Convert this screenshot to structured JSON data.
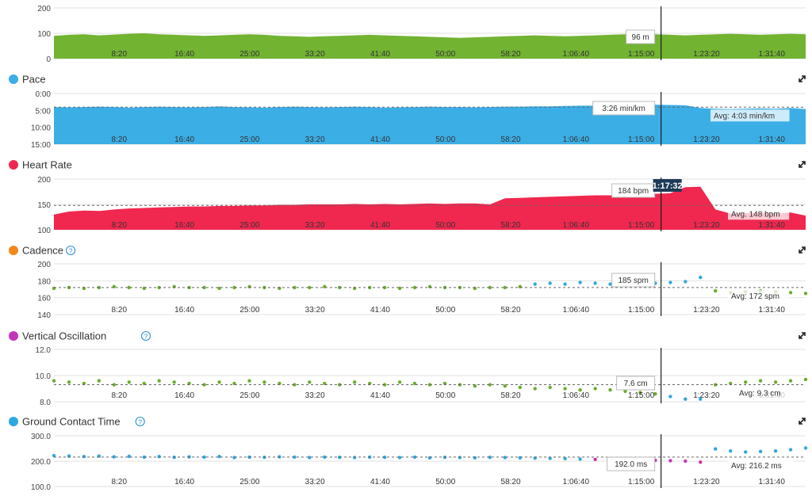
{
  "x_ticks": [
    "8:20",
    "16:40",
    "25:00",
    "33:20",
    "41:40",
    "50:00",
    "58:20",
    "1:06:40",
    "1:15:00",
    "1:23:20",
    "1:31:40"
  ],
  "x_tick_seconds": [
    500,
    1000,
    1500,
    2000,
    2500,
    3000,
    3500,
    4000,
    4500,
    5000,
    5500
  ],
  "x_range_seconds": [
    0,
    5760
  ],
  "cursor": {
    "time_label": "1:17:32",
    "time_seconds": 4652
  },
  "colors": {
    "elevation": "#72b332",
    "pace": "#3caee6",
    "heart_rate": "#f0284f",
    "cadence_green": "#6aad2b",
    "cadence_blue": "#2ea7df",
    "cadence_orange": "#f08a1c",
    "cadence_purple": "#c433b8",
    "cursor": "#1a1a1a",
    "tooltip_dark": "#1d3b57"
  },
  "expand_icon": "expand-icon",
  "chart_data": [
    {
      "id": "elevation",
      "type": "area",
      "title": "",
      "y_ticks": [
        "200",
        "100",
        "0"
      ],
      "ylim": [
        0,
        200
      ],
      "series": [
        {
          "values": [
            90,
            94,
            96,
            92,
            95,
            98,
            100,
            96,
            94,
            92,
            90,
            92,
            94,
            96,
            94,
            90,
            88,
            86,
            88,
            90,
            92,
            94,
            92,
            90,
            88,
            86,
            84,
            82,
            84,
            86,
            88,
            90,
            92,
            90,
            88,
            90,
            92,
            94,
            96,
            98,
            96,
            94,
            92,
            94,
            96,
            98,
            96,
            94,
            96,
            98,
            96
          ]
        }
      ],
      "tooltip": "96 m",
      "avg_label": ""
    },
    {
      "id": "pace",
      "type": "area",
      "title": "Pace",
      "inverted": true,
      "y_ticks": [
        "0:00",
        "5:00",
        "10:00",
        "15:00"
      ],
      "ylim_minutes_per_km": [
        0,
        15
      ],
      "series": [
        {
          "values_minutes_per_km": [
            4.0,
            4.1,
            4.0,
            3.9,
            4.0,
            4.2,
            4.0,
            3.9,
            4.0,
            4.1,
            4.0,
            3.8,
            4.0,
            4.1,
            4.2,
            4.0,
            3.9,
            4.0,
            4.1,
            4.0,
            3.9,
            4.0,
            4.2,
            4.1,
            4.0,
            3.9,
            4.0,
            4.0,
            4.1,
            4.0,
            3.9,
            3.9,
            3.8,
            3.8,
            3.7,
            3.6,
            3.6,
            3.5,
            3.5,
            3.4,
            3.3,
            3.4,
            3.5,
            4.3,
            4.5,
            4.6,
            4.5,
            4.4,
            4.5,
            4.3,
            4.6
          ]
        }
      ],
      "tooltip": "3:26 min/km",
      "avg_label": "Avg: 4:03 min/km",
      "avg_value_minutes_per_km": 4.05
    },
    {
      "id": "heart_rate",
      "type": "area",
      "title": "Heart Rate",
      "y_ticks": [
        "200",
        "150",
        "100"
      ],
      "ylim": [
        100,
        200
      ],
      "series": [
        {
          "values": [
            130,
            136,
            138,
            137,
            140,
            142,
            143,
            144,
            145,
            146,
            146,
            147,
            147,
            148,
            148,
            149,
            149,
            150,
            150,
            150,
            151,
            150,
            151,
            150,
            151,
            152,
            151,
            152,
            152,
            150,
            162,
            163,
            164,
            165,
            166,
            167,
            168,
            168,
            169,
            170,
            171,
            172,
            184,
            185,
            140,
            132,
            133,
            134,
            132,
            134,
            128
          ]
        }
      ],
      "tooltip": "184 bpm",
      "avg_label": "Avg. 148 bpm",
      "avg_value": 148
    },
    {
      "id": "cadence",
      "type": "scatter",
      "title": "Cadence",
      "y_ticks": [
        "200",
        "180",
        "160",
        "140"
      ],
      "ylim": [
        140,
        200
      ],
      "series": [
        {
          "values": [
            171,
            172,
            171,
            172,
            173,
            172,
            171,
            172,
            173,
            172,
            172,
            171,
            172,
            173,
            172,
            171,
            172,
            172,
            173,
            172,
            171,
            172,
            172,
            171,
            172,
            173,
            172,
            172,
            171,
            172,
            172,
            173,
            176,
            177,
            176,
            178,
            177,
            176,
            177,
            178,
            177,
            178,
            179,
            184,
            168,
            166,
            167,
            168,
            167,
            166,
            165
          ]
        }
      ],
      "tooltip": "185 spm",
      "avg_label": "Avg: 172 spm",
      "avg_value": 172
    },
    {
      "id": "vertical_oscillation",
      "type": "scatter",
      "title": "Vertical Oscillation",
      "y_ticks": [
        "12.0",
        "10.0",
        "8.0"
      ],
      "ylim": [
        8,
        12
      ],
      "series": [
        {
          "values": [
            9.6,
            9.5,
            9.4,
            9.6,
            9.3,
            9.5,
            9.4,
            9.6,
            9.5,
            9.4,
            9.3,
            9.5,
            9.4,
            9.6,
            9.5,
            9.4,
            9.3,
            9.5,
            9.4,
            9.3,
            9.5,
            9.4,
            9.3,
            9.5,
            9.4,
            9.3,
            9.4,
            9.3,
            9.2,
            9.3,
            9.2,
            9.1,
            9.0,
            9.1,
            9.0,
            8.9,
            9.0,
            8.9,
            8.8,
            8.7,
            8.6,
            8.4,
            8.2,
            8.2,
            9.3,
            9.4,
            9.5,
            9.6,
            9.5,
            9.6,
            9.7
          ]
        }
      ],
      "tooltip": "7.6 cm",
      "avg_label": "Avg: 9.3 cm",
      "avg_value": 9.3
    },
    {
      "id": "ground_contact_time",
      "type": "scatter",
      "title": "Ground Contact Time",
      "y_ticks": [
        "300.0",
        "200.0",
        "100.0"
      ],
      "ylim": [
        100,
        300
      ],
      "series": [
        {
          "values": [
            222,
            220,
            218,
            220,
            217,
            219,
            216,
            218,
            215,
            217,
            216,
            218,
            214,
            216,
            215,
            217,
            216,
            214,
            216,
            215,
            214,
            216,
            215,
            214,
            216,
            213,
            215,
            214,
            213,
            215,
            214,
            213,
            212,
            211,
            210,
            208,
            207,
            206,
            205,
            204,
            203,
            202,
            200,
            196,
            248,
            240,
            236,
            238,
            240,
            245,
            252
          ]
        }
      ],
      "tooltip": "192.0 ms",
      "avg_label": "Avg: 216.2 ms",
      "avg_value": 216.2
    }
  ]
}
